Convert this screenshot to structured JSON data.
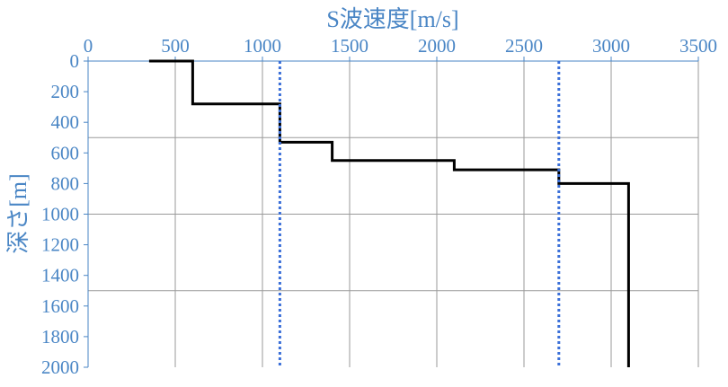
{
  "chart_data": {
    "type": "line",
    "title": "",
    "xlabel": "S波速度[m/s]",
    "ylabel": "深さ[m]",
    "xlim": [
      0,
      3500
    ],
    "ylim": [
      2000,
      0
    ],
    "x_ticks": [
      0,
      500,
      1000,
      1500,
      2000,
      2500,
      3000,
      3500
    ],
    "y_ticks": [
      0,
      200,
      400,
      600,
      800,
      1000,
      1200,
      1400,
      1600,
      1800,
      2000
    ],
    "x_tick_labels": [
      "0",
      "500",
      "1000",
      "1500",
      "2000",
      "2500",
      "3000",
      "3500"
    ],
    "y_tick_labels": [
      "0",
      "200",
      "400",
      "600",
      "800",
      "1000",
      "1200",
      "1400",
      "1600",
      "1800",
      "2000"
    ],
    "x_axis_position": "top",
    "y_axis_inverted": true,
    "grid": {
      "vertical": [
        500,
        1000,
        1500,
        2000,
        2500,
        3000,
        3500
      ],
      "horizontal": [
        500,
        1000,
        1500
      ]
    },
    "series": [
      {
        "style": "solid",
        "color": "#000000",
        "points": [
          [
            350,
            0
          ],
          [
            600,
            0
          ],
          [
            600,
            280
          ],
          [
            1100,
            280
          ],
          [
            1100,
            530
          ],
          [
            1400,
            530
          ],
          [
            1400,
            650
          ],
          [
            2100,
            650
          ],
          [
            2100,
            710
          ],
          [
            2700,
            710
          ],
          [
            2700,
            800
          ],
          [
            3100,
            800
          ],
          [
            3100,
            2000
          ]
        ]
      },
      {
        "style": "dotted",
        "color": "#3A6FD8",
        "points": [
          [
            1100,
            0
          ],
          [
            1100,
            2000
          ]
        ]
      },
      {
        "style": "dotted",
        "color": "#3A6FD8",
        "points": [
          [
            2700,
            0
          ],
          [
            2700,
            2000
          ]
        ]
      }
    ],
    "colors": {
      "axis_text": "#4A86C5",
      "grid": "#9a9a9a"
    }
  }
}
